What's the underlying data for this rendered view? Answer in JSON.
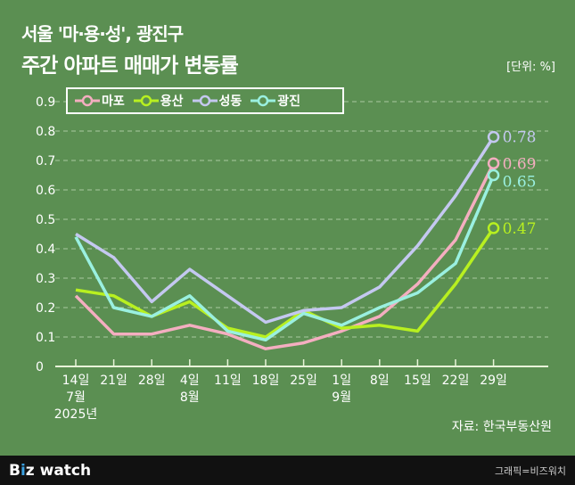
{
  "title_line1": "서울 '마·용·성', 광진구",
  "title_line2": "주간 아파트 매매가 변동률",
  "unit": "[단위: %]",
  "source": "자료: 한국부동산원",
  "footer": {
    "logo": "Bizwatch",
    "credit": "그래픽=비즈워치"
  },
  "chart_data": {
    "type": "line",
    "title": "주간 아파트 매매가 변동률",
    "categories": [
      "14일",
      "21일",
      "28일",
      "4일",
      "11일",
      "18일",
      "25일",
      "1일",
      "8일",
      "15일",
      "22일",
      "29일"
    ],
    "month_labels": {
      "0": "7월",
      "3": "8월",
      "7": "9월"
    },
    "year_label": "2025년",
    "ylim": [
      0,
      0.9
    ],
    "yticks": [
      "0",
      "0.1",
      "0.2",
      "0.3",
      "0.4",
      "0.5",
      "0.6",
      "0.7",
      "0.8",
      "0.9"
    ],
    "grid": true,
    "legend": "top-left",
    "series": [
      {
        "name": "마포",
        "color": "#f4aec0",
        "values": [
          0.24,
          0.11,
          0.11,
          0.14,
          0.11,
          0.06,
          0.08,
          0.12,
          0.17,
          0.28,
          0.43,
          0.69
        ],
        "end_label": "0.69"
      },
      {
        "name": "용산",
        "color": "#b8f020",
        "values": [
          0.26,
          0.24,
          0.17,
          0.22,
          0.13,
          0.1,
          0.19,
          0.13,
          0.14,
          0.12,
          0.28,
          0.47
        ],
        "end_label": "0.47"
      },
      {
        "name": "성동",
        "color": "#c4c8f0",
        "values": [
          0.45,
          0.37,
          0.22,
          0.33,
          0.24,
          0.15,
          0.19,
          0.2,
          0.27,
          0.41,
          0.58,
          0.78
        ],
        "end_label": "0.78"
      },
      {
        "name": "광진",
        "color": "#9af0e0",
        "values": [
          0.44,
          0.2,
          0.17,
          0.24,
          0.12,
          0.09,
          0.18,
          0.14,
          0.2,
          0.25,
          0.35,
          0.65
        ],
        "end_label": "0.65"
      }
    ]
  }
}
